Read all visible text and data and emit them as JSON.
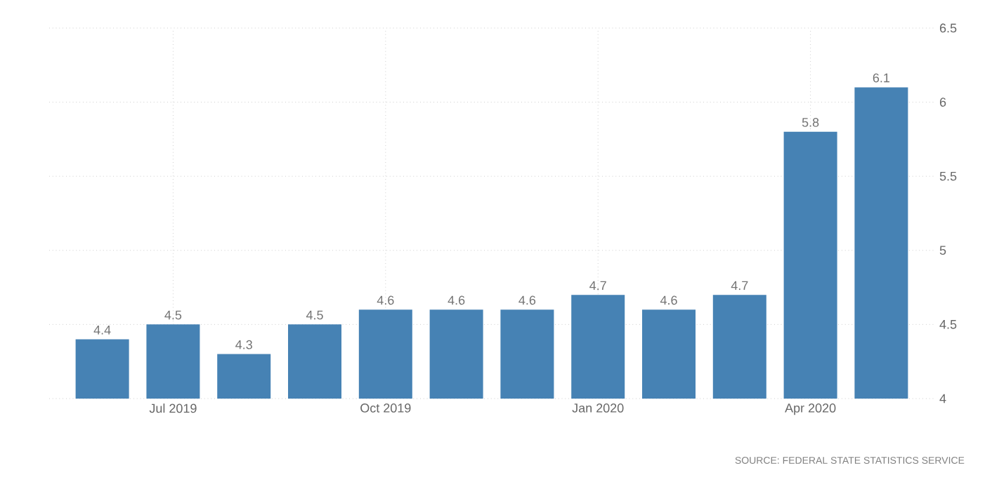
{
  "chart_data": {
    "type": "bar",
    "categories": [
      null,
      "Jul 2019",
      null,
      null,
      "Oct 2019",
      null,
      null,
      "Jan 2020",
      null,
      null,
      "Apr 2020",
      null
    ],
    "values": [
      4.4,
      4.5,
      4.3,
      4.5,
      4.6,
      4.6,
      4.6,
      4.7,
      4.6,
      4.7,
      5.8,
      6.1
    ],
    "color": "#4682b4",
    "ylim": [
      4,
      6.5
    ],
    "yticks": [
      4,
      4.5,
      5,
      5.5,
      6,
      6.5
    ],
    "grid": true,
    "data_labels": true,
    "annotations": [
      "SOURCE: FEDERAL STATE STATISTICS SERVICE"
    ]
  }
}
